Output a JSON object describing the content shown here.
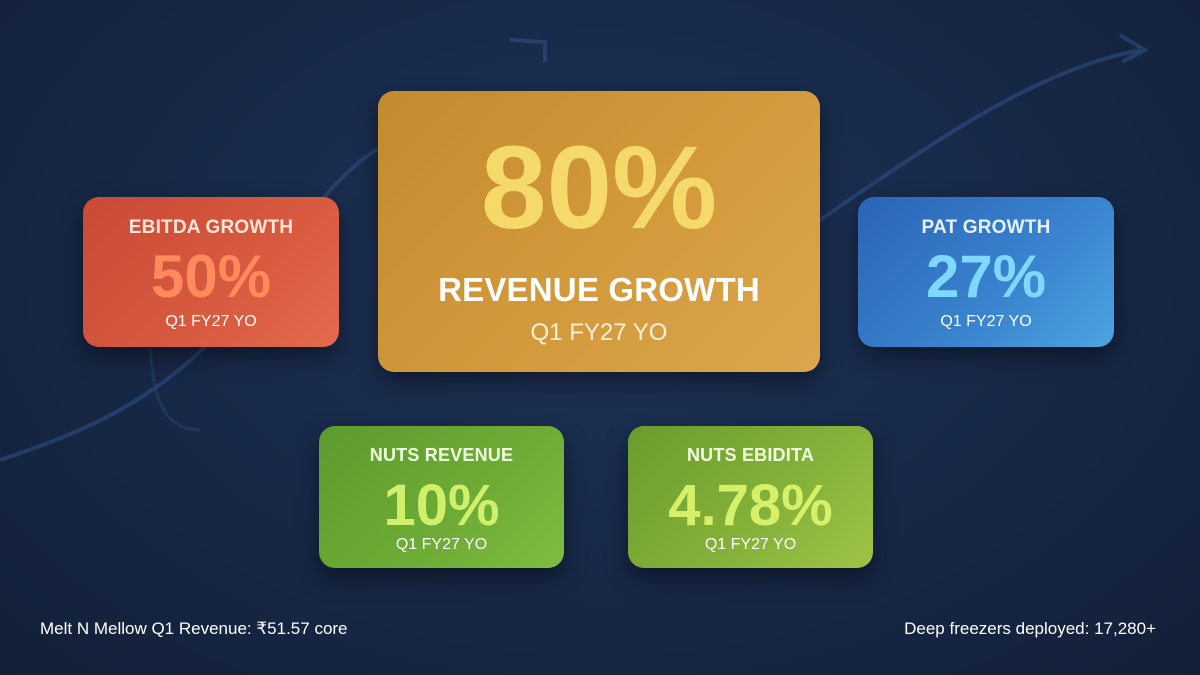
{
  "cards": {
    "revenue": {
      "value": "80%",
      "label": "REVENUE GROWTH",
      "sub": "Q1 FY27 YO"
    },
    "ebitda": {
      "label": "EBITDA GROWTH",
      "value": "50%",
      "sub": "Q1 FY27 YO"
    },
    "pat": {
      "label": "PAT GROWTH",
      "value": "27%",
      "sub": "Q1 FY27 YO"
    },
    "nuts_revenue": {
      "label": "NUTS REVENUE",
      "value": "10%",
      "sub": "Q1 FY27 YO"
    },
    "nuts_ebidita": {
      "label": "NUTS EBIDITA",
      "value": "4.78%",
      "sub": "Q1 FY27 YO"
    }
  },
  "footer": {
    "left": "Melt N Mellow Q1 Revenue: ₹51.57 core",
    "right": "Deep freezers deployed: 17,280+"
  },
  "colors": {
    "background": "#182a4a",
    "revenue_card": "#d39a3c",
    "ebitda_card": "#d85a40",
    "pat_card": "#3a84cf",
    "nuts_revenue_card": "#6eac36",
    "nuts_ebidita_card": "#86b23a"
  },
  "icons": {
    "background_decoration": "growth-arrow-curve"
  }
}
